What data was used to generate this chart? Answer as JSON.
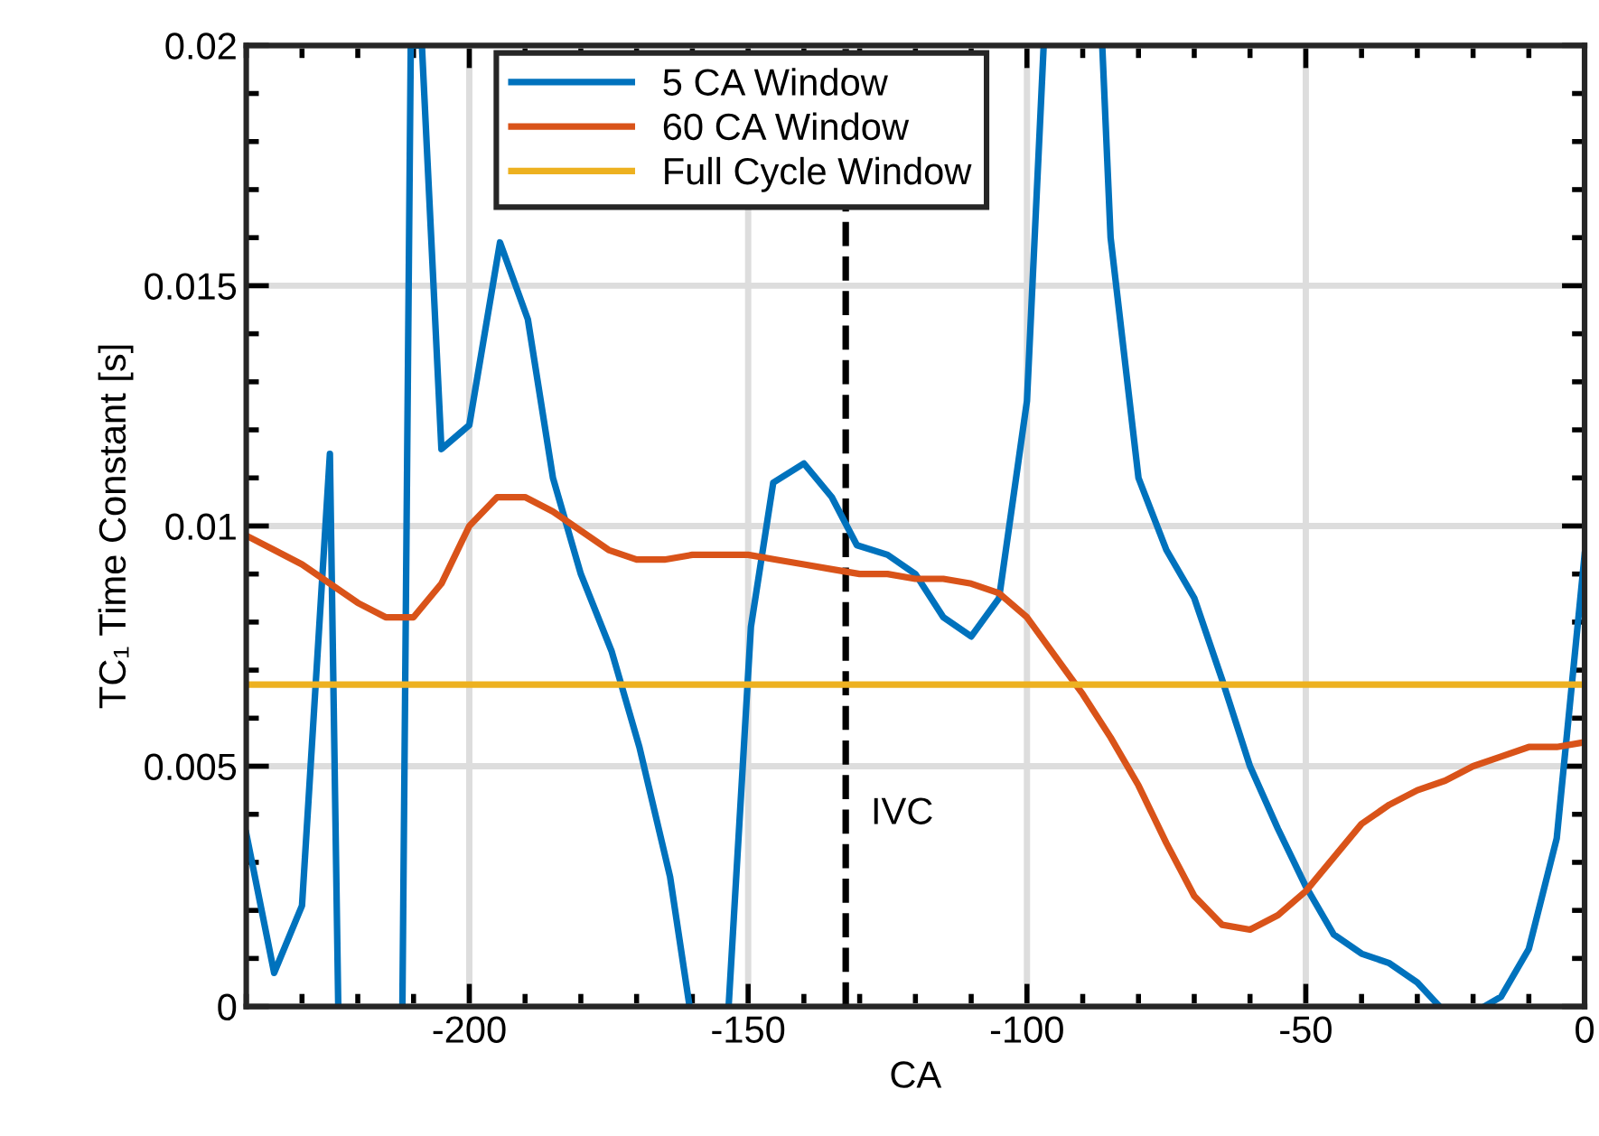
{
  "chart_data": {
    "type": "line",
    "xlabel": "CA",
    "ylabel": "TC₁ Time Constant [s]",
    "xlim": [
      -240,
      0
    ],
    "xticks": [
      -200,
      -150,
      -100,
      -50,
      0
    ],
    "ylim": [
      0,
      0.02
    ],
    "yticks": [
      0,
      0.005,
      0.01,
      0.015,
      0.02
    ],
    "grid": true,
    "legend": "top",
    "line_style": "solid",
    "marker": "none",
    "series": [
      {
        "name": "5 CA Window",
        "color": "#0072bd",
        "x": [
          -240,
          -235,
          -230,
          -225,
          -223.5,
          null,
          -212,
          -210.5,
          -208.5,
          -205,
          -200,
          -194.5,
          -189.5,
          -185,
          -180,
          -174.5,
          -169.5,
          -164,
          -160.5,
          null,
          -153.5,
          -149.5,
          -145.5,
          -140,
          -135,
          -130.5,
          -125,
          -120,
          -115,
          -110,
          -105,
          -100,
          -97,
          null,
          -86.5,
          -85,
          -80,
          -75,
          -70,
          -65,
          -60,
          -55,
          -50,
          -45,
          -40,
          -35,
          -30,
          -26,
          null,
          -18,
          -15,
          -10,
          -5,
          0
        ],
        "values": [
          0.0036,
          0.0007,
          0.0021,
          0.0115,
          0,
          null,
          0,
          0.02,
          0.02,
          0.0116,
          0.0121,
          0.0159,
          0.0143,
          0.011,
          0.009,
          0.0074,
          0.0054,
          0.0027,
          0,
          null,
          0,
          0.0079,
          0.0109,
          0.0113,
          0.0106,
          0.0096,
          0.0094,
          0.009,
          0.0081,
          0.0077,
          0.0085,
          0.0126,
          0.02,
          null,
          0.02,
          0.016,
          0.011,
          0.0095,
          0.0085,
          0.0068,
          0.005,
          0.0037,
          0.0025,
          0.0015,
          0.0011,
          0.0009,
          0.0005,
          0,
          null,
          0,
          0.0002,
          0.0012,
          0.0035,
          0.0094
        ]
      },
      {
        "name": "60 CA Window",
        "color": "#d95319",
        "x": [
          -240,
          -235,
          -230,
          -225,
          -220,
          -215,
          -210,
          -205,
          -200,
          -195,
          -190,
          -185,
          -180,
          -175,
          -170,
          -165,
          -160,
          -155,
          -150,
          -145,
          -140,
          -135,
          -130,
          -125,
          -120,
          -115,
          -110,
          -105,
          -100,
          -95,
          -90,
          -85,
          -80,
          -75,
          -70,
          -65,
          -60,
          -55,
          -50,
          -45,
          -40,
          -35,
          -30,
          -25,
          -20,
          -15,
          -10,
          -5,
          0
        ],
        "values": [
          0.0098,
          0.0095,
          0.0092,
          0.0088,
          0.0084,
          0.0081,
          0.0081,
          0.0088,
          0.01,
          0.0106,
          0.0106,
          0.0103,
          0.0099,
          0.0095,
          0.0093,
          0.0093,
          0.0094,
          0.0094,
          0.0094,
          0.0093,
          0.0092,
          0.0091,
          0.009,
          0.009,
          0.0089,
          0.0089,
          0.0088,
          0.0086,
          0.0081,
          0.0073,
          0.0065,
          0.0056,
          0.0046,
          0.0034,
          0.0023,
          0.0017,
          0.0016,
          0.0019,
          0.0024,
          0.0031,
          0.0038,
          0.0042,
          0.0045,
          0.0047,
          0.005,
          0.0052,
          0.0054,
          0.0054,
          0.0055
        ]
      },
      {
        "name": "Full Cycle Window",
        "color": "#edb120",
        "x": [
          -240,
          0
        ],
        "values": [
          0.0067,
          0.0067
        ]
      }
    ],
    "ref_lines": [
      {
        "axis": "x",
        "value": -132.5,
        "label": "IVC",
        "color": "#000000",
        "line_style": "dashed"
      }
    ]
  }
}
